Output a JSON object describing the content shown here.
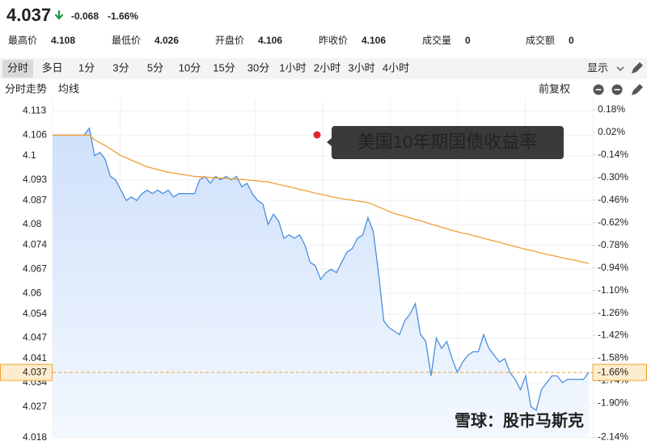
{
  "quote": {
    "price": 4.037,
    "change": -0.068,
    "change_pct": "-1.66%",
    "color": "#1e9b3c"
  },
  "stats": [
    {
      "label": "最高价",
      "value": 4.108,
      "color": "#e0262c"
    },
    {
      "label": "最低价",
      "value": 4.026,
      "color": "#1e9b3c"
    },
    {
      "label": "开盘价",
      "value": 4.106,
      "color": "#222222"
    },
    {
      "label": "昨收价",
      "value": 4.106,
      "color": "#222222"
    },
    {
      "label": "成交量",
      "value": 0,
      "color": "#222222"
    },
    {
      "label": "成交额",
      "value": 0,
      "color": "#222222"
    }
  ],
  "tabs": [
    "分时",
    "多日",
    "1分",
    "3分",
    "5分",
    "10分",
    "15分",
    "30分",
    "1小时",
    "2小时",
    "3小时",
    "4小时"
  ],
  "display_menu": "显示",
  "adjust": "前复权",
  "watermark": "雪球：股市马斯克",
  "chart_data": {
    "type": "line",
    "annotation": "美国10年期国债收益率",
    "area": true,
    "grid": true,
    "up_color": "#e0262c",
    "down_color": "#1e9b3c",
    "ylim": [
      4.018,
      4.1164
    ],
    "yticks": [
      4.113,
      4.106,
      4.1,
      4.093,
      4.087,
      4.08,
      4.074,
      4.067,
      4.06,
      4.054,
      4.047,
      4.041,
      4.034,
      4.027,
      4.018
    ],
    "y2lim": [
      -2.143,
      0.253
    ],
    "y2ticks": [
      {
        "value": 0.18,
        "label": "0.18%"
      },
      {
        "value": 0.02,
        "label": "0.02%"
      },
      {
        "value": -0.14,
        "label": "-0.14%"
      },
      {
        "value": -0.3,
        "label": "-0.30%"
      },
      {
        "value": -0.46,
        "label": "-0.46%"
      },
      {
        "value": -0.62,
        "label": "-0.62%"
      },
      {
        "value": -0.78,
        "label": "-0.78%"
      },
      {
        "value": -0.94,
        "label": "-0.94%"
      },
      {
        "value": -1.1,
        "label": "-1.10%"
      },
      {
        "value": -1.26,
        "label": "-1.26%"
      },
      {
        "value": -1.42,
        "label": "-1.42%"
      },
      {
        "value": -1.58,
        "label": "-1.58%"
      },
      {
        "value": -1.74,
        "label": "-1.74%"
      },
      {
        "value": -1.9,
        "label": "-1.90%"
      },
      {
        "value": -2.14,
        "label": "-2.14%"
      }
    ],
    "series": [
      {
        "name": "分时走势",
        "color": "#4a8fe0",
        "values": [
          4.106,
          4.106,
          4.106,
          4.106,
          4.106,
          4.106,
          4.106,
          4.108,
          4.1,
          4.101,
          4.099,
          4.094,
          4.093,
          4.09,
          4.087,
          4.088,
          4.087,
          4.089,
          4.09,
          4.089,
          4.09,
          4.089,
          4.09,
          4.088,
          4.089,
          4.089,
          4.089,
          4.089,
          4.093,
          4.094,
          4.092,
          4.094,
          4.093,
          4.094,
          4.093,
          4.094,
          4.091,
          4.092,
          4.089,
          4.087,
          4.086,
          4.08,
          4.083,
          4.081,
          4.076,
          4.077,
          4.076,
          4.077,
          4.074,
          4.069,
          4.068,
          4.064,
          4.066,
          4.067,
          4.066,
          4.069,
          4.072,
          4.073,
          4.076,
          4.077,
          4.082,
          4.078,
          4.066,
          4.052,
          4.05,
          4.049,
          4.048,
          4.052,
          4.054,
          4.057,
          4.048,
          4.046,
          4.036,
          4.047,
          4.044,
          4.046,
          4.041,
          4.037,
          4.04,
          4.042,
          4.043,
          4.043,
          4.048,
          4.044,
          4.042,
          4.04,
          4.041,
          4.037,
          4.035,
          4.032,
          4.036,
          4.027,
          4.026,
          4.032,
          4.034,
          4.036,
          4.036,
          4.034,
          4.035,
          4.035,
          4.035,
          4.035,
          4.037
        ]
      },
      {
        "name": "均线",
        "color": "#ee9f35",
        "values": [
          4.106,
          4.106,
          4.106,
          4.106,
          4.106,
          4.106,
          4.106,
          4.106,
          4.1046,
          4.1038,
          4.103,
          4.102,
          4.101,
          4.1,
          4.0994,
          4.0987,
          4.0981,
          4.0974,
          4.0968,
          4.0964,
          4.096,
          4.0956,
          4.0952,
          4.095,
          4.0947,
          4.0945,
          4.0942,
          4.094,
          4.0939,
          4.0938,
          4.0937,
          4.0936,
          4.0935,
          4.0934,
          4.0933,
          4.0932,
          4.0931,
          4.093,
          4.0928,
          4.0927,
          4.0925,
          4.0924,
          4.092,
          4.0917,
          4.0913,
          4.091,
          4.0906,
          4.0902,
          4.0899,
          4.0895,
          4.0891,
          4.0888,
          4.0885,
          4.0881,
          4.0878,
          4.0875,
          4.0873,
          4.0871,
          4.0868,
          4.0866,
          4.0864,
          4.0858,
          4.0851,
          4.0845,
          4.0838,
          4.0832,
          4.0828,
          4.0824,
          4.0819,
          4.0815,
          4.0811,
          4.0806,
          4.0801,
          4.0797,
          4.0792,
          4.0788,
          4.0783,
          4.0779,
          4.0775,
          4.0772,
          4.0768,
          4.0764,
          4.076,
          4.0756,
          4.0752,
          4.0748,
          4.0744,
          4.074,
          4.0736,
          4.0732,
          4.0728,
          4.0725,
          4.0721,
          4.0717,
          4.0713,
          4.071,
          4.0707,
          4.0703,
          4.07,
          4.0697,
          4.0694,
          4.069,
          4.0687
        ]
      }
    ]
  }
}
